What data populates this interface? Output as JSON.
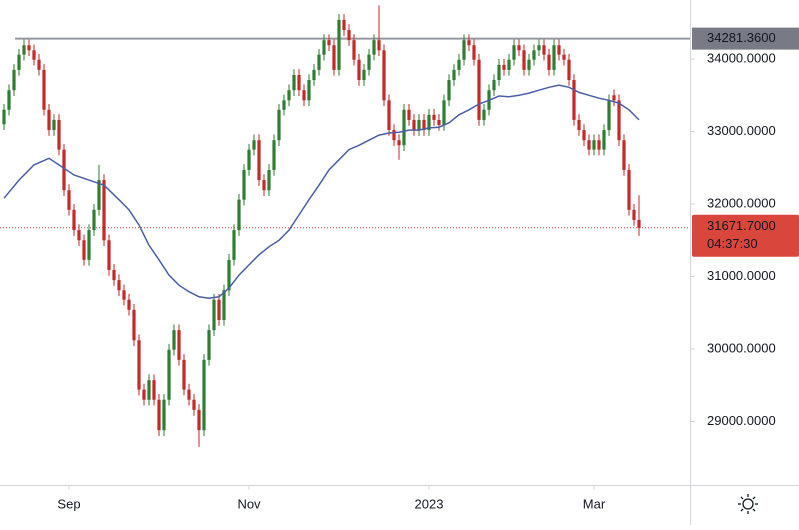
{
  "chart_data": {
    "type": "candlestick",
    "xlim": [
      -0.8,
      137.2
    ],
    "xticks": [
      {
        "value": 13,
        "label": "Sep"
      },
      {
        "value": 49,
        "label": "Nov"
      },
      {
        "value": 85,
        "label": "2023"
      },
      {
        "value": 118,
        "label": "Mar"
      }
    ],
    "ylim": [
      28124,
      34814
    ],
    "yticks": [
      {
        "value": 29000,
        "label": "29000.0000"
      },
      {
        "value": 30000,
        "label": "30000.0000"
      },
      {
        "value": 31000,
        "label": "31000.0000"
      },
      {
        "value": 32000,
        "label": "32000.0000"
      },
      {
        "value": 33000,
        "label": "33000.0000"
      },
      {
        "value": 34000,
        "label": "34000.0000"
      }
    ],
    "up_color": "#2e7d32",
    "down_color": "#c62828",
    "open": [
      33100,
      33300,
      33570,
      33850,
      34060,
      34190,
      34120,
      33990,
      33850,
      33300,
      33020,
      33160,
      32750,
      32190,
      31920,
      31640,
      31500,
      31230,
      31640,
      31920,
      32330,
      31500,
      31090,
      30950,
      30810,
      30680,
      30540,
      30120,
      29440,
      29300,
      29570,
      29300,
      28880,
      29300,
      29990,
      30260,
      29850,
      29440,
      29300,
      29160,
      28880,
      29850,
      30260,
      30680,
      30400,
      30810,
      31230,
      31640,
      32060,
      32470,
      32750,
      32880,
      32330,
      32190,
      32470,
      32880,
      33300,
      33430,
      33570,
      33780,
      33570,
      33430,
      33710,
      33850,
      34060,
      34260,
      34190,
      33850,
      34540,
      34400,
      34260,
      33990,
      33710,
      33850,
      34060,
      34260,
      34120,
      33430,
      33020,
      32880,
      32810,
      33300,
      33160,
      33020,
      33160,
      33020,
      33230,
      33160,
      33090,
      33430,
      33710,
      33850,
      33990,
      34260,
      34190,
      33990,
      33160,
      33300,
      33570,
      33710,
      33920,
      33850,
      33990,
      34190,
      34120,
      33850,
      33990,
      34120,
      34190,
      34060,
      33850,
      34190,
      34060,
      33990,
      33710,
      33160,
      33020,
      32880,
      32750,
      32880,
      32750,
      33020,
      33500,
      33430,
      32880,
      32470,
      31920,
      31780
    ],
    "high": [
      33380,
      33650,
      33930,
      34140,
      34270,
      34270,
      34200,
      34070,
      33930,
      33380,
      33240,
      33240,
      32830,
      32270,
      32000,
      31720,
      31580,
      31720,
      32000,
      32540,
      32410,
      31580,
      31170,
      31030,
      30890,
      30760,
      30620,
      30200,
      29520,
      29650,
      29650,
      29380,
      29380,
      30070,
      30340,
      30340,
      29930,
      29520,
      29380,
      29240,
      29930,
      30340,
      30760,
      30760,
      30890,
      31310,
      31720,
      32140,
      32550,
      32830,
      32960,
      32960,
      32410,
      32550,
      32960,
      33380,
      33510,
      33650,
      33860,
      33860,
      33650,
      33790,
      33930,
      34140,
      34340,
      34340,
      34270,
      34620,
      34620,
      34480,
      34340,
      34070,
      33930,
      34140,
      34340,
      34740,
      34200,
      33510,
      33100,
      32960,
      33380,
      33380,
      33240,
      33240,
      33240,
      33310,
      33310,
      33240,
      33510,
      33790,
      33930,
      34070,
      34340,
      34340,
      34270,
      34070,
      33380,
      33650,
      33790,
      34000,
      34000,
      34070,
      34270,
      34270,
      34200,
      34070,
      34200,
      34270,
      34270,
      34140,
      34270,
      34270,
      34140,
      34070,
      33790,
      33240,
      33100,
      32960,
      32960,
      32960,
      33100,
      33510,
      33580,
      33510,
      32960,
      32550,
      32000,
      32120
    ],
    "low": [
      33020,
      33220,
      33490,
      33770,
      33980,
      34040,
      33910,
      33770,
      33220,
      32940,
      32940,
      32670,
      32110,
      31840,
      31560,
      31420,
      31150,
      31150,
      31560,
      31840,
      31420,
      31010,
      30870,
      30730,
      30600,
      30460,
      30040,
      29360,
      29220,
      29220,
      29220,
      28800,
      28800,
      29220,
      29910,
      29770,
      29360,
      29220,
      29080,
      28650,
      28800,
      29770,
      30180,
      30320,
      30320,
      30730,
      31150,
      31560,
      31980,
      32390,
      32670,
      32250,
      32110,
      32110,
      32390,
      32800,
      33220,
      33350,
      33490,
      33490,
      33350,
      33350,
      33630,
      33770,
      33980,
      34110,
      33770,
      33770,
      34320,
      34180,
      33910,
      33630,
      33630,
      33770,
      33980,
      34040,
      33350,
      32940,
      32800,
      32610,
      32730,
      33080,
      32940,
      32940,
      32940,
      32940,
      33080,
      33010,
      33010,
      33350,
      33630,
      33770,
      33910,
      34110,
      33910,
      33080,
      33080,
      33220,
      33490,
      33630,
      33770,
      33770,
      33910,
      34040,
      33770,
      33770,
      33910,
      34040,
      33980,
      33770,
      33770,
      33980,
      33910,
      33630,
      33080,
      32940,
      32800,
      32670,
      32670,
      32670,
      32670,
      32940,
      33350,
      32800,
      32390,
      31840,
      31700,
      31560
    ],
    "close": [
      33300,
      33570,
      33850,
      34060,
      34190,
      34120,
      33990,
      33850,
      33300,
      33020,
      33160,
      32750,
      32190,
      31920,
      31640,
      31500,
      31230,
      31640,
      31920,
      32330,
      31500,
      31090,
      30950,
      30810,
      30680,
      30540,
      30120,
      29440,
      29300,
      29570,
      29300,
      28880,
      29300,
      29990,
      30260,
      29850,
      29440,
      29300,
      29160,
      28880,
      29850,
      30260,
      30680,
      30400,
      30810,
      31230,
      31640,
      32060,
      32470,
      32750,
      32880,
      32330,
      32190,
      32470,
      32880,
      33300,
      33430,
      33570,
      33780,
      33570,
      33430,
      33710,
      33850,
      34060,
      34260,
      34190,
      33850,
      34540,
      34400,
      34260,
      33990,
      33710,
      33850,
      34060,
      34260,
      34120,
      33430,
      33020,
      32880,
      32810,
      33300,
      33160,
      33020,
      33160,
      33020,
      33230,
      33160,
      33090,
      33430,
      33710,
      33850,
      33990,
      34260,
      34190,
      33990,
      33160,
      33300,
      33570,
      33710,
      33920,
      33850,
      33990,
      34190,
      34120,
      33850,
      33990,
      34120,
      34190,
      34060,
      33850,
      34190,
      34060,
      33990,
      33710,
      33160,
      33020,
      32880,
      32750,
      32880,
      32750,
      33020,
      33430,
      33430,
      32880,
      32470,
      31920,
      31780,
      31671.7
    ],
    "ma": {
      "color": "#4a5ea8",
      "x": [
        0,
        3,
        6,
        9,
        11,
        14,
        17,
        20,
        23,
        25,
        27,
        29,
        31,
        33,
        35,
        37,
        39,
        41,
        43,
        45,
        47,
        49,
        51,
        53,
        55,
        57,
        59,
        61,
        63,
        65,
        67,
        69,
        71,
        73,
        75,
        77,
        79,
        81,
        83,
        85,
        87,
        89,
        91,
        93,
        95,
        97,
        99,
        101,
        103,
        105,
        107,
        109,
        111,
        113,
        115,
        117,
        119,
        121,
        123,
        125,
        127
      ],
      "values": [
        32080,
        32330,
        32540,
        32630,
        32540,
        32400,
        32330,
        32260,
        32060,
        31920,
        31710,
        31430,
        31230,
        31020,
        30880,
        30790,
        30720,
        30700,
        30720,
        30840,
        31020,
        31160,
        31300,
        31410,
        31500,
        31640,
        31850,
        32060,
        32260,
        32470,
        32610,
        32750,
        32810,
        32880,
        32950,
        32980,
        32990,
        33020,
        33020,
        33050,
        33060,
        33120,
        33230,
        33300,
        33380,
        33430,
        33490,
        33480,
        33500,
        33530,
        33570,
        33610,
        33640,
        33610,
        33540,
        33500,
        33460,
        33430,
        33390,
        33300,
        33160
      ]
    },
    "hline": {
      "value": 34281.36,
      "label": "34281.3600",
      "color": "#9598a1"
    },
    "last_price": {
      "value": 31671.7,
      "label": "31671.7000",
      "countdown": "04:37:30",
      "color": "#d9473c"
    }
  }
}
